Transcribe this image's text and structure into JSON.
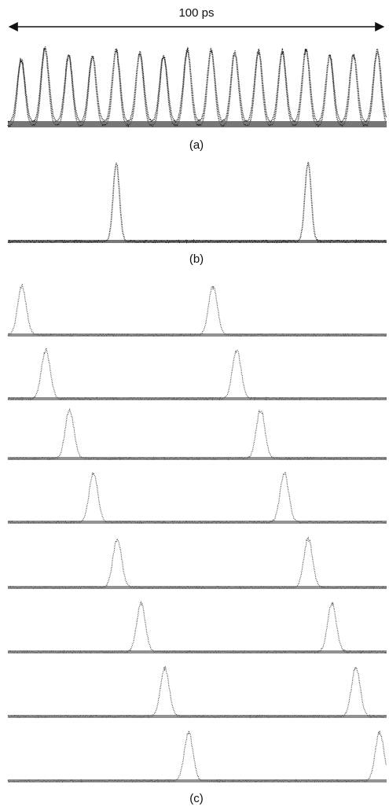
{
  "scale_label": "100 ps",
  "panels": [
    {
      "label": "(a)"
    },
    {
      "label": "(b)"
    },
    {
      "label": "(c)"
    }
  ]
}
